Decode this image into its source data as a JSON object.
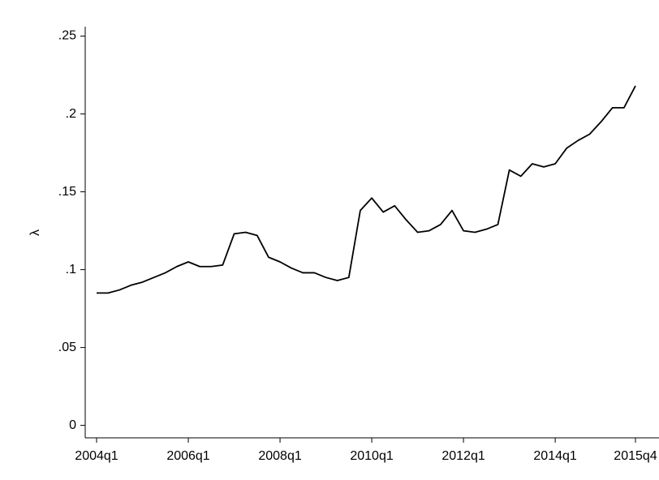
{
  "chart_data": {
    "type": "line",
    "y_label": "λ",
    "categories": [
      "2004q1",
      null,
      null,
      null,
      null,
      null,
      null,
      null,
      "2006q1",
      null,
      null,
      null,
      null,
      null,
      null,
      null,
      "2008q1",
      null,
      null,
      null,
      null,
      null,
      null,
      null,
      "2010q1",
      null,
      null,
      null,
      null,
      null,
      null,
      null,
      "2012q1",
      null,
      null,
      null,
      null,
      null,
      null,
      null,
      "2014q1",
      null,
      null,
      null,
      null,
      null,
      null,
      "2015q4"
    ],
    "series": [
      {
        "color": "#000000",
        "values": [
          0.085,
          0.085,
          0.087,
          0.09,
          0.092,
          0.095,
          0.098,
          0.102,
          0.105,
          0.102,
          0.102,
          0.103,
          0.123,
          0.124,
          0.122,
          0.108,
          0.105,
          0.101,
          0.098,
          0.098,
          0.095,
          0.093,
          0.095,
          0.138,
          0.146,
          0.137,
          0.141,
          0.132,
          0.124,
          0.125,
          0.129,
          0.138,
          0.125,
          0.124,
          0.126,
          0.129,
          0.164,
          0.16,
          0.168,
          0.166,
          0.168,
          0.178,
          0.183,
          0.187,
          0.195,
          0.204,
          0.204,
          0.218
        ]
      }
    ],
    "ylim": [
      -0.008,
      0.256
    ],
    "yticks": [
      0,
      {
        "value": 0.05,
        "label": ".05"
      },
      {
        "value": 0.1,
        "label": ".1"
      },
      {
        "value": 0.15,
        "label": ".15"
      },
      {
        "value": 0.2,
        "label": ".2"
      },
      {
        "value": 0.25,
        "label": ".25"
      }
    ]
  }
}
